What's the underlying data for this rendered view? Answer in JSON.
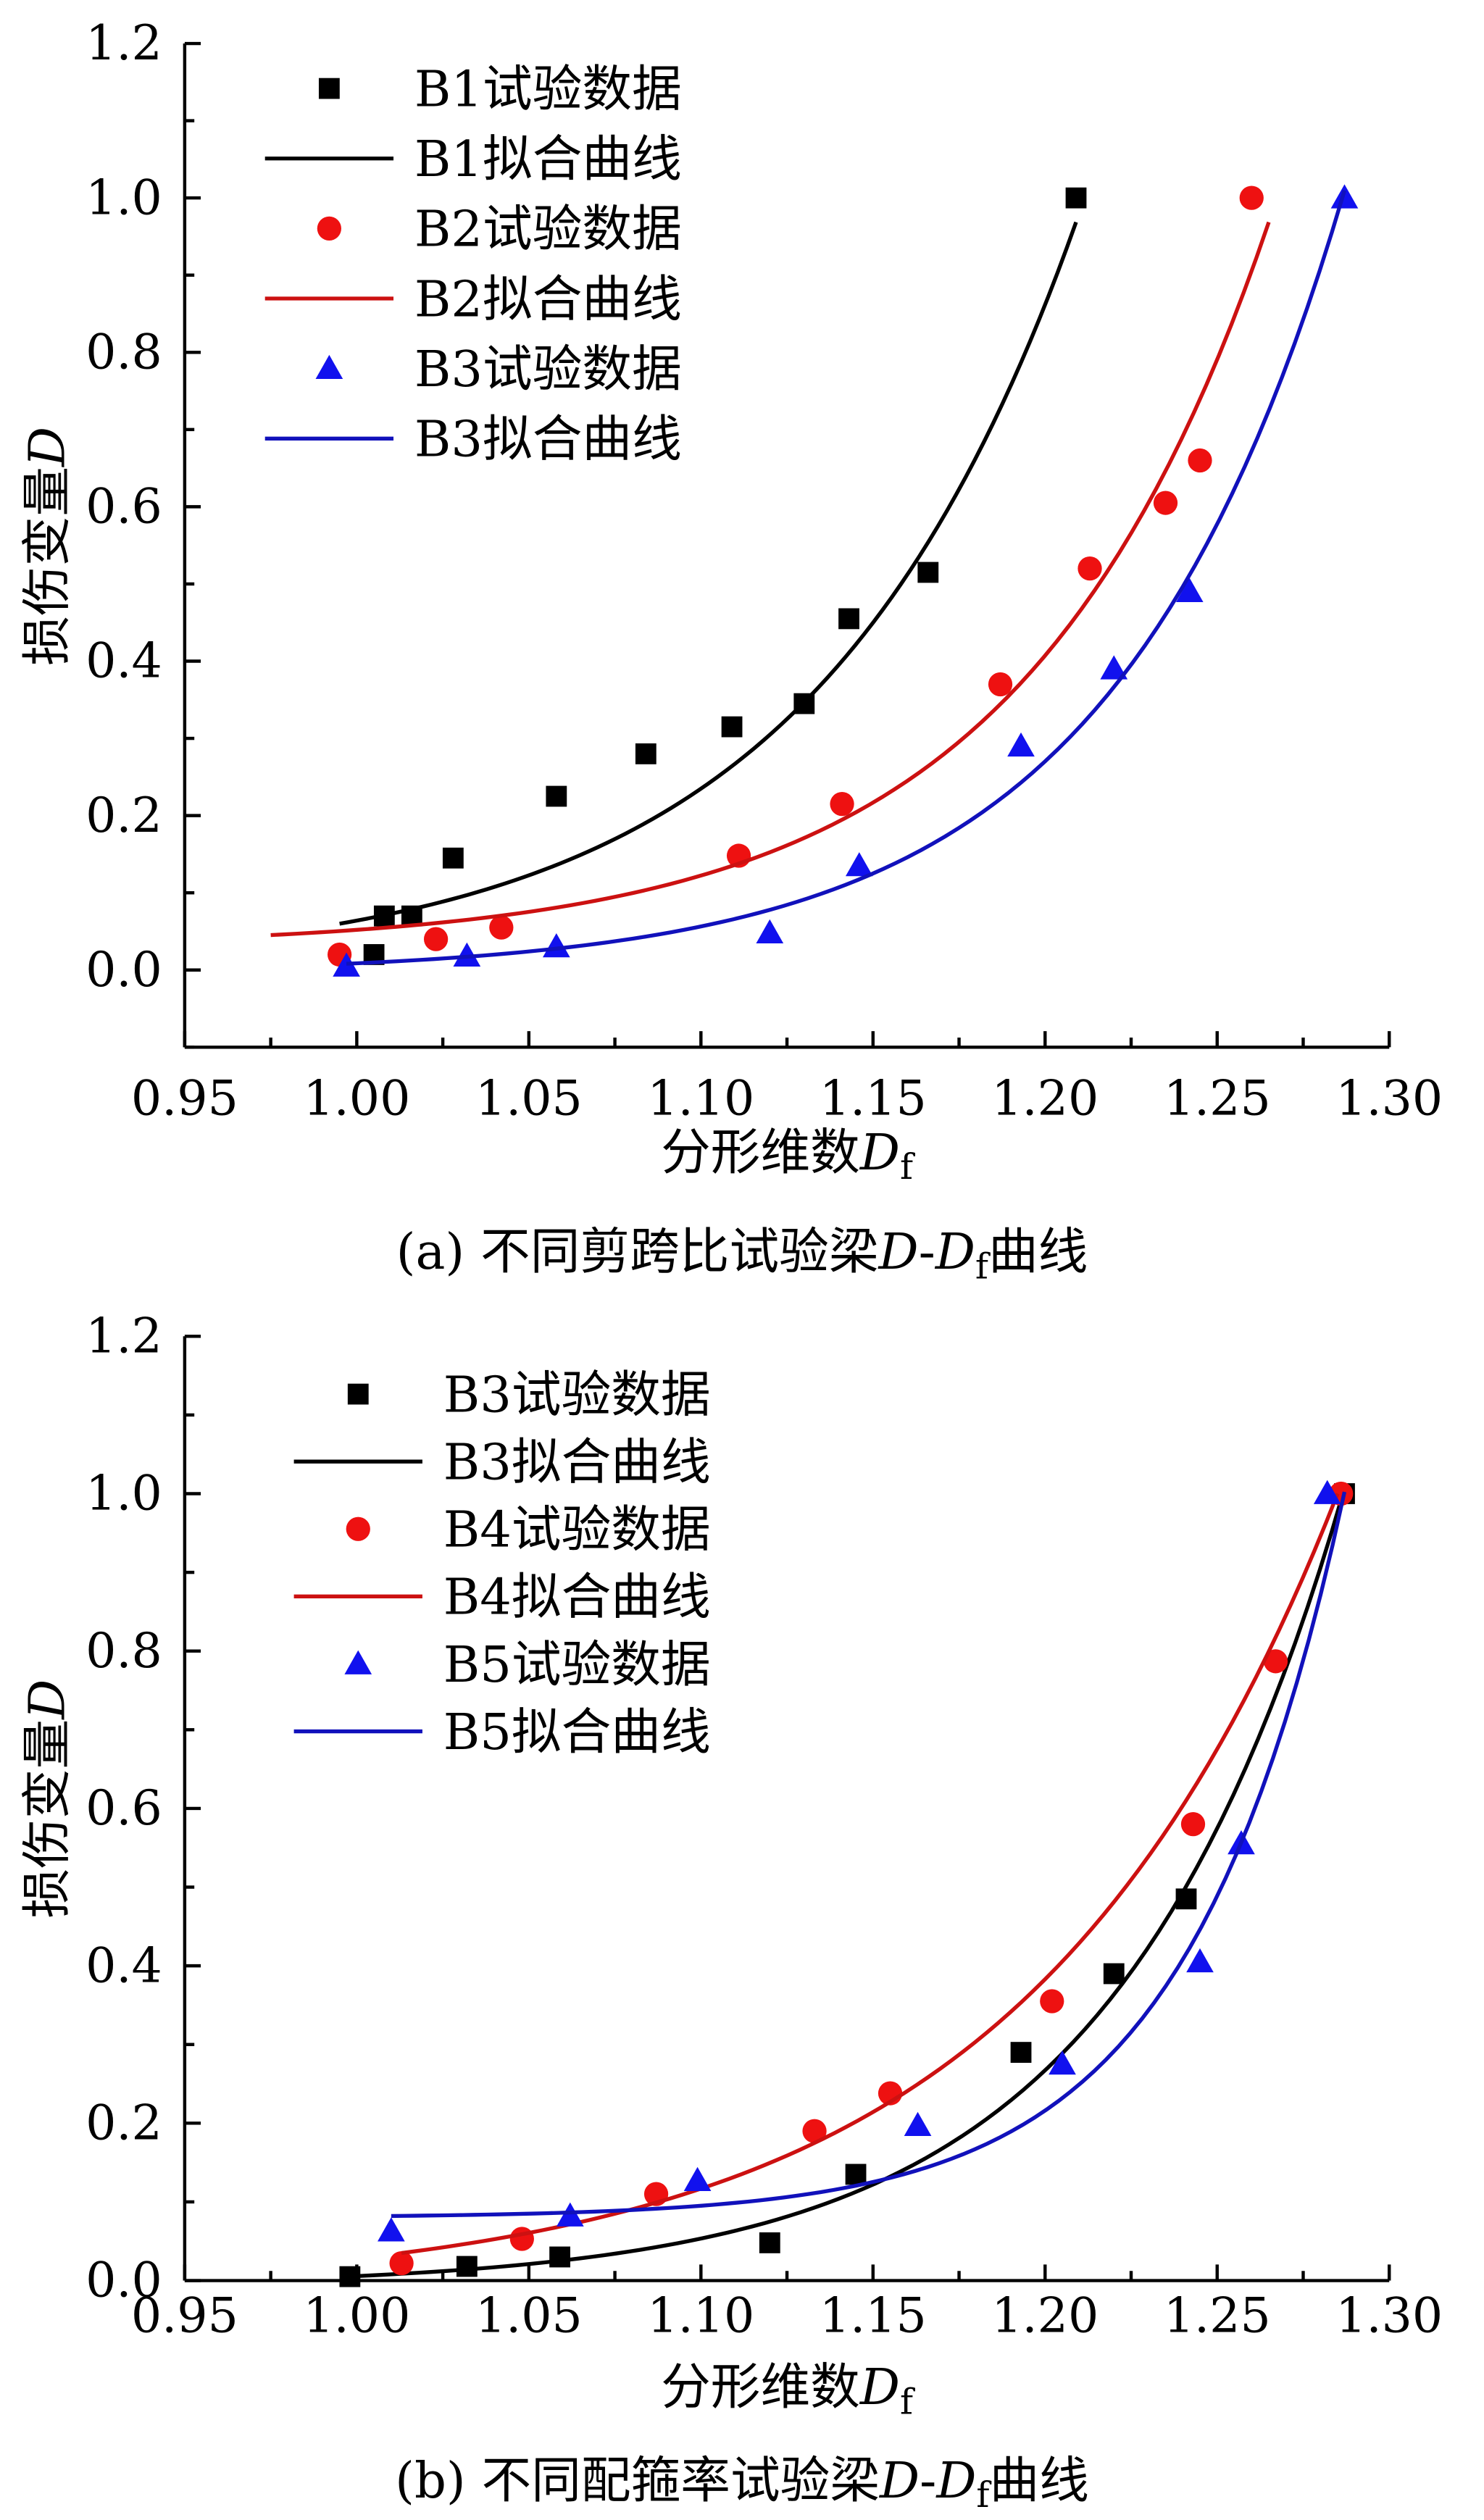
{
  "chart_data": [
    {
      "type": "scatter",
      "id": "a",
      "xlabel": {
        "text": "分形维数",
        "var": "D",
        "sub": "f"
      },
      "ylabel": {
        "text": "损伤变量",
        "var": "D"
      },
      "caption": {
        "prefix": "(a) 不同剪跨比试验梁",
        "var1": "D",
        "sep": "-",
        "var2": "D",
        "sub": "f",
        "suffix": "曲线"
      },
      "xlim": [
        0.95,
        1.3
      ],
      "ylim": [
        -0.1,
        1.2
      ],
      "xticks": [
        "0.95",
        "1.00",
        "1.05",
        "1.10",
        "1.15",
        "1.20",
        "1.25",
        "1.30"
      ],
      "yticks": [
        "0.0",
        "0.2",
        "0.4",
        "0.6",
        "0.8",
        "1.0",
        "1.2"
      ],
      "grid": false,
      "legend_position": "top-left",
      "series": [
        {
          "name": "B1试验数据",
          "kind": "points",
          "marker": "square",
          "color": "#000000",
          "x": [
            1.005,
            1.008,
            1.016,
            1.028,
            1.058,
            1.084,
            1.109,
            1.13,
            1.143,
            1.166,
            1.209
          ],
          "y": [
            0.02,
            0.07,
            0.07,
            0.145,
            0.225,
            0.28,
            0.315,
            0.345,
            0.455,
            0.515,
            1.0
          ]
        },
        {
          "name": "B1拟合曲线",
          "kind": "fit",
          "color": "#000000",
          "model": "D = c + a·exp(b·(Df−1))",
          "a": 0.064,
          "b": 13.0,
          "c": 0.0,
          "xrange": [
            0.995,
            1.209
          ]
        },
        {
          "name": "B2试验数据",
          "kind": "points",
          "marker": "circle",
          "color": "#ee1111",
          "x": [
            0.995,
            1.023,
            1.042,
            1.111,
            1.141,
            1.187,
            1.213,
            1.235,
            1.245,
            1.26
          ],
          "y": [
            0.02,
            0.04,
            0.055,
            0.148,
            0.215,
            0.37,
            0.52,
            0.605,
            0.66,
            1.0
          ]
        },
        {
          "name": "B2拟合曲线",
          "kind": "fit",
          "color": "#cc1111",
          "model": "D = c + a·exp(b·(Df−1))",
          "a": 0.023,
          "b": 14.0,
          "c": 0.029,
          "xrange": [
            0.975,
            1.265
          ]
        },
        {
          "name": "B3试验数据",
          "kind": "points",
          "marker": "triangle",
          "color": "#1111ee",
          "x": [
            0.997,
            1.032,
            1.058,
            1.12,
            1.146,
            1.193,
            1.22,
            1.242,
            1.287
          ],
          "y": [
            0.005,
            0.018,
            0.03,
            0.048,
            0.135,
            0.29,
            0.39,
            0.49,
            1.0
          ]
        },
        {
          "name": "B3拟合曲线",
          "kind": "fit",
          "color": "#1111bb",
          "model": "D = c + a·exp(b·(Df−1))",
          "a": 0.0137,
          "b": 15.0,
          "c": -0.005,
          "xrange": [
            0.997,
            1.287
          ]
        }
      ]
    },
    {
      "type": "scatter",
      "id": "b",
      "xlabel": {
        "text": "分形维数",
        "var": "D",
        "sub": "f"
      },
      "ylabel": {
        "text": "损伤变量",
        "var": "D"
      },
      "caption": {
        "prefix": "(b) 不同配箍率试验梁",
        "var1": "D",
        "sep": "-",
        "var2": "D",
        "sub": "f",
        "suffix": "曲线"
      },
      "xlim": [
        0.95,
        1.3
      ],
      "ylim": [
        0.0,
        1.2
      ],
      "xticks": [
        "0.95",
        "1.00",
        "1.05",
        "1.10",
        "1.15",
        "1.20",
        "1.25",
        "1.30"
      ],
      "yticks": [
        "0.0",
        "0.2",
        "0.4",
        "0.6",
        "0.8",
        "1.0",
        "1.2"
      ],
      "grid": false,
      "legend_position": "top-left",
      "series": [
        {
          "name": "B3试验数据",
          "kind": "points",
          "marker": "square",
          "color": "#000000",
          "x": [
            0.998,
            1.032,
            1.059,
            1.12,
            1.145,
            1.193,
            1.22,
            1.241,
            1.287
          ],
          "y": [
            0.005,
            0.018,
            0.03,
            0.048,
            0.135,
            0.29,
            0.39,
            0.485,
            1.0
          ]
        },
        {
          "name": "B3拟合曲线",
          "kind": "fit",
          "color": "#000000",
          "model": "D = c + a·exp(b·(Df−1))",
          "a": 0.0137,
          "b": 15.0,
          "c": -0.008,
          "xrange": [
            1.0,
            1.287
          ]
        },
        {
          "name": "B4试验数据",
          "kind": "points",
          "marker": "circle",
          "color": "#ee1111",
          "x": [
            1.013,
            1.048,
            1.087,
            1.133,
            1.155,
            1.202,
            1.243,
            1.267,
            1.286
          ],
          "y": [
            0.022,
            0.053,
            0.11,
            0.19,
            0.238,
            0.355,
            0.58,
            0.787,
            1.0
          ]
        },
        {
          "name": "B4拟合曲线",
          "kind": "fit",
          "color": "#cc1111",
          "model": "D = c + a·exp(b·(Df−1))",
          "a": 0.0442,
          "b": 11.0,
          "c": -0.016,
          "xrange": [
            1.013,
            1.285
          ]
        },
        {
          "name": "B5试验数据",
          "kind": "points",
          "marker": "triangle",
          "color": "#1111ee",
          "x": [
            1.01,
            1.062,
            1.099,
            1.163,
            1.205,
            1.245,
            1.257,
            1.282
          ],
          "y": [
            0.063,
            0.082,
            0.127,
            0.197,
            0.275,
            0.405,
            0.555,
            1.0
          ]
        },
        {
          "name": "B5拟合曲线",
          "kind": "fit",
          "color": "#1111bb",
          "model": "D = c + a·exp(b·(Df−1))",
          "a": 0.00167,
          "b": 22.0,
          "c": 0.08,
          "xrange": [
            1.01,
            1.287
          ]
        }
      ]
    }
  ]
}
